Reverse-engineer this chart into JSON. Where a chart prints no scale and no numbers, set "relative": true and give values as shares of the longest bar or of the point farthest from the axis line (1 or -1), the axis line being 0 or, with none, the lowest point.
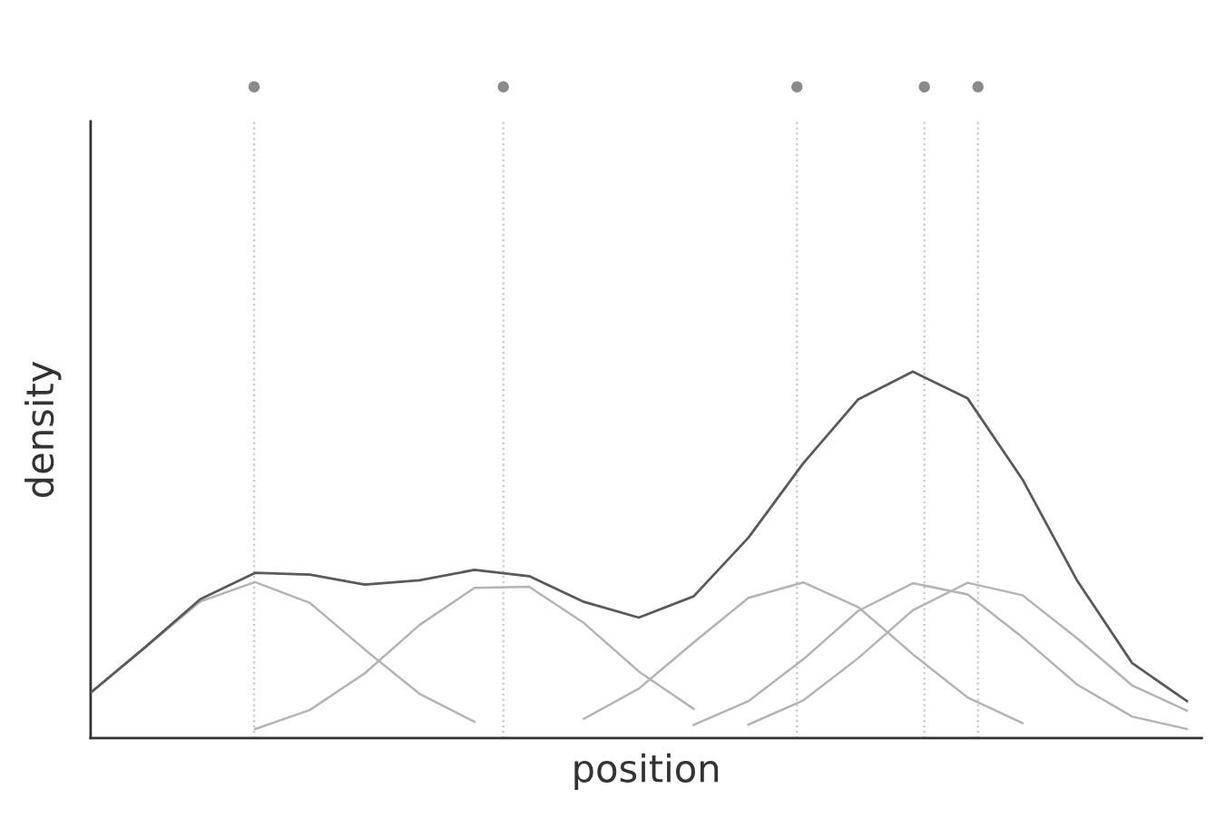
{
  "chart_data": {
    "type": "line",
    "xlabel": "position",
    "ylabel": "density",
    "relative": true,
    "tick_labels": false,
    "line_style": "solid",
    "marker": "none",
    "categories": [
      null,
      null,
      null,
      null,
      null,
      null,
      null,
      null,
      null,
      null,
      null,
      null,
      null,
      null,
      null,
      null,
      null,
      null,
      null,
      null,
      null
    ],
    "series": [
      {
        "color": "#5a5a5a",
        "values": [
          0.124,
          0.249,
          0.379,
          0.451,
          0.446,
          0.419,
          0.431,
          0.459,
          0.442,
          0.372,
          0.329,
          0.387,
          0.547,
          0.75,
          0.924,
          1.0,
          0.927,
          0.706,
          0.429,
          0.205,
          0.101
        ]
      },
      {
        "color": "#b4b4b4",
        "values": [
          0.124,
          0.248,
          0.373,
          0.426,
          0.369,
          0.242,
          0.121,
          0.045,
          null,
          null,
          null,
          null,
          null,
          null,
          null,
          null,
          null,
          null,
          null,
          null,
          null
        ]
      },
      {
        "color": "#b4b4b4",
        "values": [
          null,
          null,
          null,
          0.025,
          0.077,
          0.177,
          0.309,
          0.41,
          0.413,
          0.314,
          0.182,
          0.08,
          null,
          null,
          null,
          null,
          null,
          null,
          null,
          null,
          null
        ]
      },
      {
        "color": "#b4b4b4",
        "values": [
          null,
          null,
          null,
          null,
          null,
          null,
          null,
          null,
          null,
          0.053,
          0.135,
          0.261,
          0.383,
          0.425,
          0.358,
          0.229,
          0.111,
          0.041,
          null,
          null,
          null
        ]
      },
      {
        "color": "#b4b4b4",
        "values": [
          null,
          null,
          null,
          null,
          null,
          null,
          null,
          null,
          null,
          null,
          null,
          0.036,
          0.101,
          0.215,
          0.347,
          0.423,
          0.392,
          0.275,
          0.146,
          0.059,
          0.025
        ]
      },
      {
        "color": "#b4b4b4",
        "values": [
          null,
          null,
          null,
          null,
          null,
          null,
          null,
          null,
          null,
          null,
          null,
          null,
          0.037,
          0.103,
          0.218,
          0.349,
          0.424,
          0.39,
          0.272,
          0.144,
          0.075
        ]
      }
    ]
  }
}
